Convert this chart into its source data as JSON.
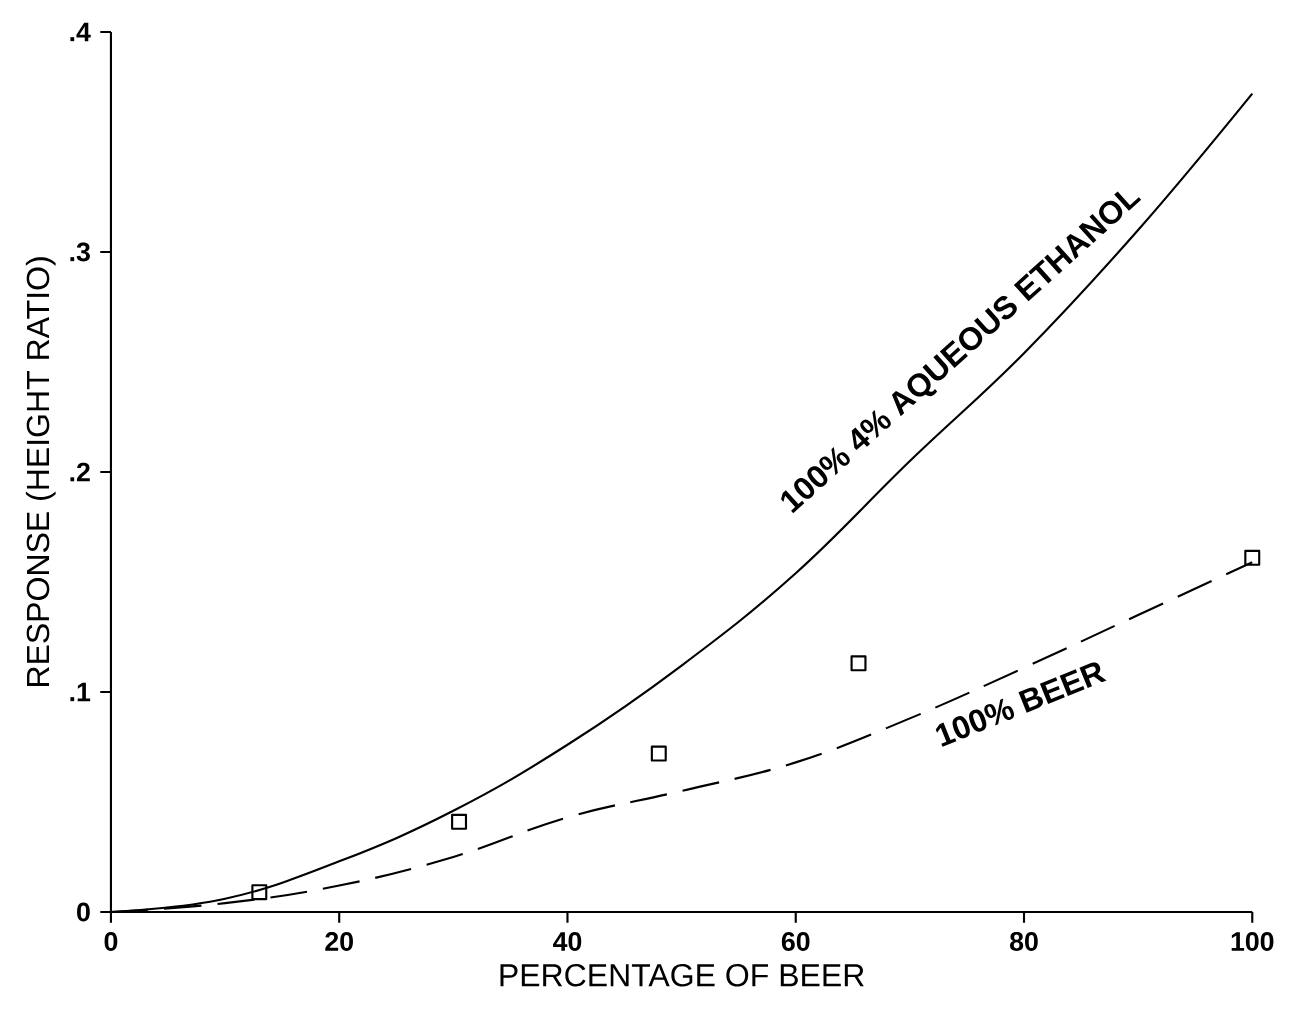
{
  "chart_data": {
    "type": "line",
    "xlabel": "PERCENTAGE OF BEER",
    "ylabel": "RESPONSE (HEIGHT RATIO)",
    "xlim": [
      0,
      100
    ],
    "ylim": [
      0,
      0.4
    ],
    "xticks": [
      0,
      20,
      40,
      60,
      80,
      100
    ],
    "yticks": [
      0,
      {
        "value": 0.1,
        "label": ".1"
      },
      {
        "value": 0.2,
        "label": ".2"
      },
      {
        "value": 0.3,
        "label": ".3"
      },
      {
        "value": 0.4,
        "label": ".4"
      }
    ],
    "grid": false,
    "series": [
      {
        "name": "100% 4% AQUEOUS ETHANOL",
        "line_style": "solid",
        "marker": "none",
        "color": "#000000",
        "x": [
          0,
          10,
          20,
          30,
          40,
          50,
          60,
          70,
          80,
          90,
          100
        ],
        "values": [
          0,
          0.006,
          0.023,
          0.046,
          0.076,
          0.112,
          0.154,
          0.205,
          0.254,
          0.31,
          0.372
        ]
      },
      {
        "name": "100% BEER",
        "line_style": "dashed",
        "marker": "none",
        "color": "#000000",
        "x": [
          0,
          10,
          20,
          30,
          40,
          50,
          60,
          70,
          80,
          90,
          100
        ],
        "values": [
          0,
          0.004,
          0.012,
          0.025,
          0.043,
          0.055,
          0.068,
          0.088,
          0.111,
          0.135,
          0.159
        ]
      },
      {
        "type": "scatter",
        "marker": "square",
        "color": "#000000",
        "x": [
          13,
          30.5,
          48,
          65.5,
          100
        ],
        "values": [
          0.009,
          0.041,
          0.072,
          0.113,
          0.161
        ]
      }
    ]
  }
}
